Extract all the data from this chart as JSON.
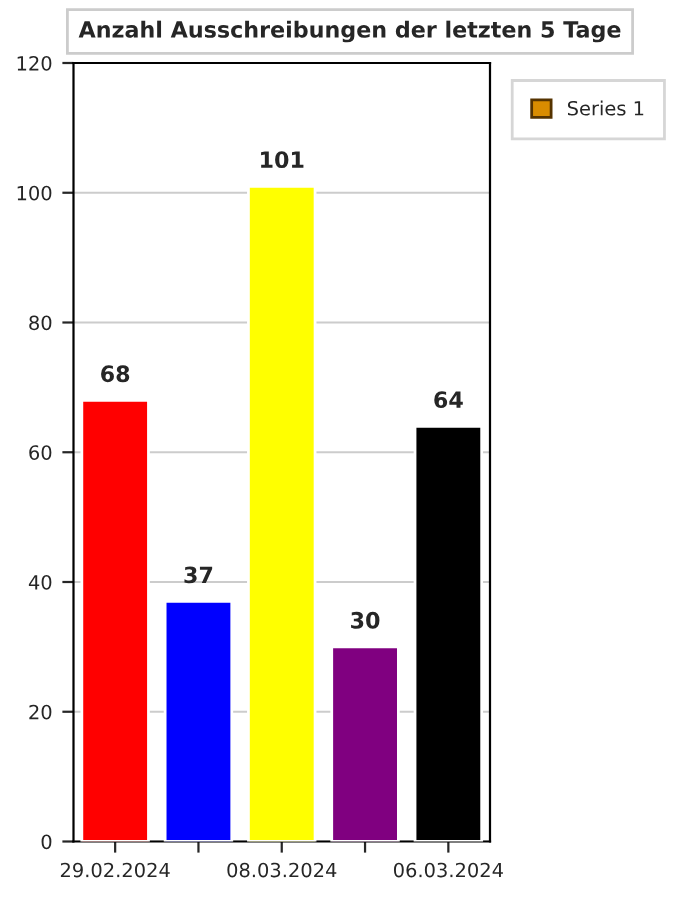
{
  "chart_data": {
    "type": "bar",
    "title": "Anzahl Ausschreibungen der letzten 5 Tage",
    "categories": [
      "29.02.2024",
      null,
      "08.03.2024",
      null,
      "06.03.2024"
    ],
    "series": [
      {
        "name": "Series 1",
        "color": "#d98c00",
        "values": [
          68,
          37,
          101,
          30,
          64
        ],
        "colors": [
          "#ff0000",
          "#0000ff",
          "#ffff00",
          "#800080",
          "#000000"
        ]
      }
    ],
    "ylim": [
      0,
      120
    ],
    "yticks": [
      0,
      20,
      40,
      60,
      80,
      100,
      120
    ],
    "grid": "y",
    "legend": "top right",
    "data_labels": true
  }
}
